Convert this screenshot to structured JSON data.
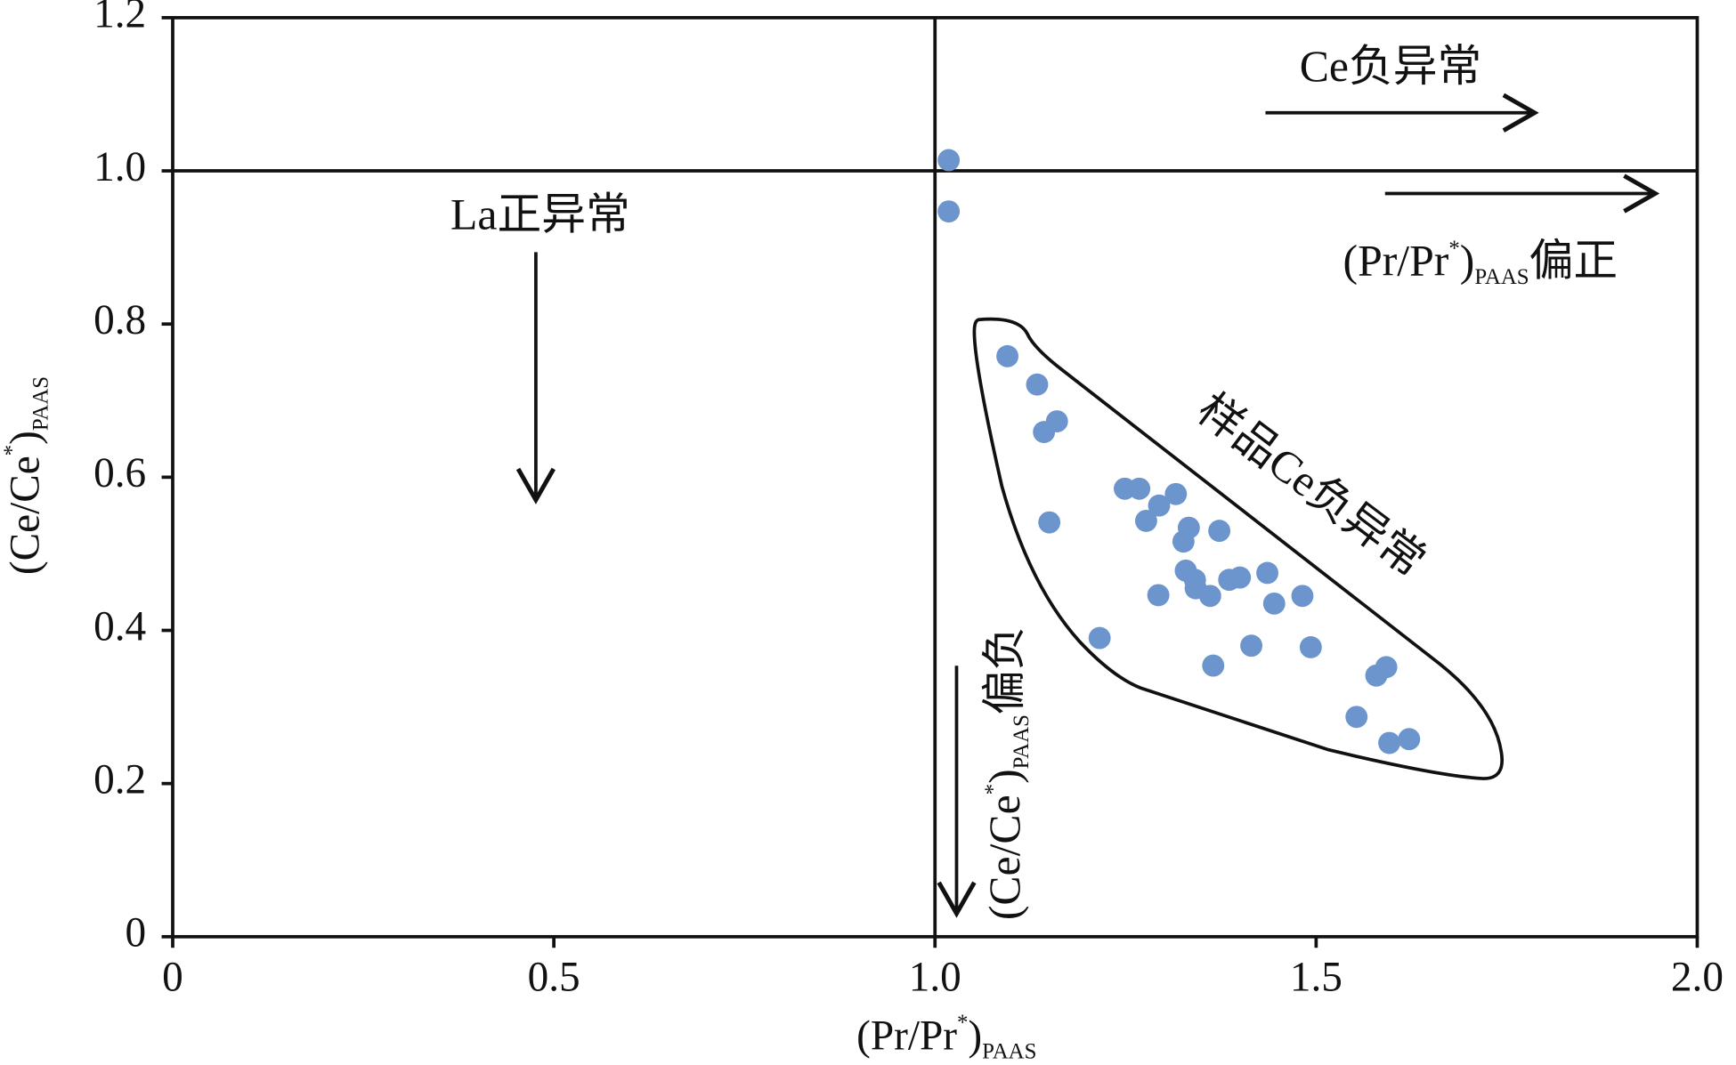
{
  "chart_data": {
    "type": "scatter",
    "xlabel": {
      "main": "(Pr/Pr",
      "sup": "*",
      "close": ")",
      "sub": "PAAS"
    },
    "ylabel": {
      "main": "(Ce/Ce",
      "sup": "*",
      "close": ")",
      "sub": "PAAS"
    },
    "xlim": [
      0,
      2.0
    ],
    "ylim": [
      0,
      1.2
    ],
    "xticks": [
      0,
      0.5,
      {
        "value": 1.0,
        "label": "1.0"
      },
      1.5,
      {
        "value": 2.0,
        "label": "2.0"
      }
    ],
    "yticks": [
      0,
      0.2,
      0.4,
      0.6,
      0.8,
      {
        "value": 1.0,
        "label": "1.0"
      },
      1.2
    ],
    "ref_lines": {
      "x": 1.0,
      "y": 1.0
    },
    "color": "#6b95cc",
    "x": [
      1.018,
      1.018,
      1.095,
      1.134,
      1.143,
      1.16,
      1.15,
      1.216,
      1.249,
      1.268,
      1.277,
      1.294,
      1.316,
      1.333,
      1.326,
      1.373,
      1.329,
      1.341,
      1.342,
      1.361,
      1.293,
      1.386,
      1.4,
      1.436,
      1.445,
      1.482,
      1.365,
      1.415,
      1.493,
      1.553,
      1.579,
      1.592,
      1.596,
      1.622
    ],
    "y": [
      1.014,
      0.947,
      0.758,
      0.721,
      0.659,
      0.673,
      0.541,
      0.39,
      0.585,
      0.585,
      0.543,
      0.563,
      0.578,
      0.534,
      0.516,
      0.53,
      0.478,
      0.466,
      0.455,
      0.445,
      0.446,
      0.466,
      0.469,
      0.475,
      0.435,
      0.445,
      0.354,
      0.38,
      0.378,
      0.287,
      0.341,
      0.352,
      0.253,
      0.258
    ],
    "annotations": [
      {
        "text": "Ce负异常"
      },
      {
        "text": "La正异常"
      },
      {
        "parts": [
          "(Pr/Pr",
          "*",
          ")",
          "PAAS",
          "偏正"
        ]
      },
      {
        "text": "样品Ce负异常"
      },
      {
        "parts": [
          "(Ce/Ce",
          "*",
          ")",
          "PAAS",
          "偏负"
        ]
      }
    ]
  }
}
